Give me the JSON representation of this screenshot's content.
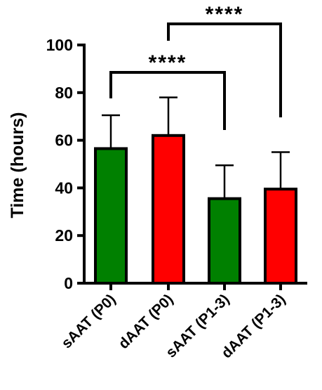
{
  "chart_data": {
    "type": "bar",
    "categories": [
      "sAAT (P0)",
      "dAAT (P0)",
      "sAAT (P1-3)",
      "dAAT (P1-3)"
    ],
    "values": [
      56.5,
      62,
      35.5,
      39.5
    ],
    "error_upper": [
      70.5,
      78,
      49.5,
      55
    ],
    "bar_colors": [
      "#008000",
      "#ff0000",
      "#008000",
      "#ff0000"
    ],
    "title": "",
    "xlabel": "",
    "ylabel": "Time (hours)",
    "ylim": [
      0,
      100
    ],
    "yticks": [
      "0",
      "20",
      "40",
      "60",
      "80",
      "100"
    ],
    "grid": false,
    "significance": [
      {
        "from": 0,
        "to": 2,
        "label": "****"
      },
      {
        "from": 1,
        "to": 3,
        "label": "****"
      }
    ]
  }
}
